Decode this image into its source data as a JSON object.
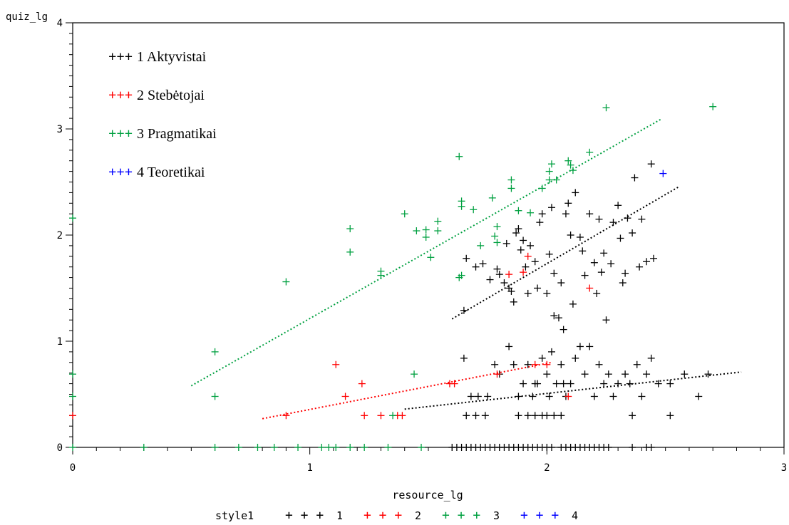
{
  "chart_data": {
    "type": "scatter",
    "xlabel": "resource_lg",
    "ylabel": "quiz_lg",
    "xlim": [
      0,
      3
    ],
    "ylim": [
      0,
      4
    ],
    "x_ticks": [
      "0",
      "1",
      "2",
      "3"
    ],
    "y_ticks": [
      "0",
      "1",
      "2",
      "3",
      "4"
    ],
    "legend_inner": {
      "placement": "top-left",
      "entries": [
        {
          "symbol": "+++",
          "label": "1 Aktyvistai",
          "color": "#000000"
        },
        {
          "symbol": "+++",
          "label": "2 Stebėtojai",
          "color": "#ff0000"
        },
        {
          "symbol": "+++",
          "label": "3 Pragmatikai",
          "color": "#00a040"
        },
        {
          "symbol": "+++",
          "label": "4 Teoretikai",
          "color": "#0000ff"
        }
      ]
    },
    "legend_bottom": {
      "title": "style1",
      "entries": [
        {
          "symbol": "+ + +",
          "label": "1",
          "color": "#000000"
        },
        {
          "symbol": "+ + +",
          "label": "2",
          "color": "#ff0000"
        },
        {
          "symbol": "+ + +",
          "label": "3",
          "color": "#00a040"
        },
        {
          "symbol": "+ + +",
          "label": "4",
          "color": "#0000ff"
        }
      ]
    },
    "series": [
      {
        "name": "1",
        "color": "#000000",
        "fit": {
          "x": [
            1.4,
            2.82
          ],
          "y": [
            0.36,
            0.71
          ]
        },
        "fit2": {
          "x": [
            1.6,
            2.56
          ],
          "y": [
            1.21,
            2.46
          ]
        },
        "points": [
          [
            1.65,
            1.29
          ],
          [
            1.66,
            1.78
          ],
          [
            1.7,
            1.7
          ],
          [
            1.73,
            1.73
          ],
          [
            1.76,
            1.58
          ],
          [
            1.79,
            1.68
          ],
          [
            1.8,
            1.63
          ],
          [
            1.82,
            1.55
          ],
          [
            1.83,
            1.92
          ],
          [
            1.84,
            1.5
          ],
          [
            1.85,
            1.47
          ],
          [
            1.86,
            1.37
          ],
          [
            1.87,
            2.02
          ],
          [
            1.88,
            2.06
          ],
          [
            1.89,
            1.86
          ],
          [
            1.9,
            1.95
          ],
          [
            1.91,
            1.7
          ],
          [
            1.92,
            1.45
          ],
          [
            1.93,
            1.9
          ],
          [
            1.95,
            1.75
          ],
          [
            1.96,
            1.5
          ],
          [
            1.97,
            2.12
          ],
          [
            1.98,
            2.2
          ],
          [
            2.0,
            1.45
          ],
          [
            2.01,
            1.82
          ],
          [
            2.02,
            2.26
          ],
          [
            2.03,
            1.64
          ],
          [
            2.05,
            1.22
          ],
          [
            2.06,
            1.55
          ],
          [
            2.08,
            2.2
          ],
          [
            2.09,
            2.3
          ],
          [
            2.1,
            2.0
          ],
          [
            2.11,
            1.35
          ],
          [
            2.12,
            2.4
          ],
          [
            2.14,
            1.98
          ],
          [
            2.15,
            1.85
          ],
          [
            2.16,
            1.62
          ],
          [
            2.18,
            2.2
          ],
          [
            2.2,
            1.74
          ],
          [
            2.21,
            1.45
          ],
          [
            2.22,
            2.15
          ],
          [
            2.23,
            1.65
          ],
          [
            2.24,
            1.83
          ],
          [
            2.25,
            1.2
          ],
          [
            2.27,
            1.73
          ],
          [
            2.28,
            2.12
          ],
          [
            2.3,
            2.28
          ],
          [
            2.31,
            1.97
          ],
          [
            2.32,
            1.55
          ],
          [
            2.33,
            1.64
          ],
          [
            2.34,
            2.16
          ],
          [
            2.36,
            2.02
          ],
          [
            2.37,
            2.54
          ],
          [
            2.39,
            1.7
          ],
          [
            2.4,
            2.15
          ],
          [
            2.42,
            1.75
          ],
          [
            2.44,
            2.67
          ],
          [
            2.45,
            1.78
          ],
          [
            2.07,
            1.11
          ],
          [
            2.03,
            1.24
          ],
          [
            1.65,
            0.84
          ],
          [
            1.68,
            0.48
          ],
          [
            1.71,
            0.48
          ],
          [
            1.75,
            0.48
          ],
          [
            1.78,
            0.78
          ],
          [
            1.8,
            0.69
          ],
          [
            1.84,
            0.95
          ],
          [
            1.86,
            0.78
          ],
          [
            1.88,
            0.48
          ],
          [
            1.9,
            0.6
          ],
          [
            1.92,
            0.78
          ],
          [
            1.94,
            0.48
          ],
          [
            1.96,
            0.6
          ],
          [
            1.98,
            0.84
          ],
          [
            2.0,
            0.69
          ],
          [
            2.02,
            0.9
          ],
          [
            2.04,
            0.6
          ],
          [
            2.06,
            0.78
          ],
          [
            2.08,
            0.48
          ],
          [
            2.1,
            0.6
          ],
          [
            2.12,
            0.84
          ],
          [
            2.14,
            0.95
          ],
          [
            2.16,
            0.69
          ],
          [
            2.18,
            0.95
          ],
          [
            2.2,
            0.48
          ],
          [
            2.22,
            0.78
          ],
          [
            2.24,
            0.6
          ],
          [
            2.26,
            0.69
          ],
          [
            2.28,
            0.48
          ],
          [
            2.3,
            0.6
          ],
          [
            2.33,
            0.69
          ],
          [
            2.35,
            0.6
          ],
          [
            2.38,
            0.78
          ],
          [
            2.4,
            0.48
          ],
          [
            2.42,
            0.69
          ],
          [
            2.44,
            0.84
          ],
          [
            2.47,
            0.6
          ],
          [
            2.52,
            0.6
          ],
          [
            2.58,
            0.69
          ],
          [
            2.64,
            0.48
          ],
          [
            2.68,
            0.69
          ],
          [
            2.07,
            0.6
          ],
          [
            1.95,
            0.6
          ],
          [
            2.01,
            0.48
          ],
          [
            1.66,
            0.3
          ],
          [
            1.7,
            0.3
          ],
          [
            1.74,
            0.3
          ],
          [
            1.88,
            0.3
          ],
          [
            1.92,
            0.3
          ],
          [
            1.95,
            0.3
          ],
          [
            1.98,
            0.3
          ],
          [
            2.0,
            0.3
          ],
          [
            2.03,
            0.3
          ],
          [
            2.06,
            0.3
          ],
          [
            2.36,
            0.3
          ],
          [
            2.52,
            0.3
          ],
          [
            1.6,
            0.0
          ],
          [
            1.62,
            0.0
          ],
          [
            1.64,
            0.0
          ],
          [
            1.66,
            0.0
          ],
          [
            1.68,
            0.0
          ],
          [
            1.7,
            0.0
          ],
          [
            1.72,
            0.0
          ],
          [
            1.74,
            0.0
          ],
          [
            1.76,
            0.0
          ],
          [
            1.78,
            0.0
          ],
          [
            1.8,
            0.0
          ],
          [
            1.82,
            0.0
          ],
          [
            1.84,
            0.0
          ],
          [
            1.86,
            0.0
          ],
          [
            1.88,
            0.0
          ],
          [
            1.9,
            0.0
          ],
          [
            1.92,
            0.0
          ],
          [
            1.94,
            0.0
          ],
          [
            1.96,
            0.0
          ],
          [
            1.98,
            0.0
          ],
          [
            2.0,
            0.0
          ],
          [
            2.02,
            0.0
          ],
          [
            2.06,
            0.0
          ],
          [
            2.08,
            0.0
          ],
          [
            2.1,
            0.0
          ],
          [
            2.12,
            0.0
          ],
          [
            2.14,
            0.0
          ],
          [
            2.16,
            0.0
          ],
          [
            2.18,
            0.0
          ],
          [
            2.2,
            0.0
          ],
          [
            2.22,
            0.0
          ],
          [
            2.24,
            0.0
          ],
          [
            2.26,
            0.0
          ],
          [
            2.36,
            0.0
          ],
          [
            2.42,
            0.0
          ],
          [
            2.44,
            0.0
          ]
        ]
      },
      {
        "name": "2",
        "color": "#ff0000",
        "fit": {
          "x": [
            0.8,
            2.02
          ],
          "y": [
            0.27,
            0.8
          ]
        },
        "points": [
          [
            0.0,
            0.3
          ],
          [
            0.9,
            0.3
          ],
          [
            1.11,
            0.78
          ],
          [
            1.15,
            0.48
          ],
          [
            1.22,
            0.6
          ],
          [
            1.23,
            0.3
          ],
          [
            1.3,
            0.3
          ],
          [
            1.37,
            0.3
          ],
          [
            1.39,
            0.3
          ],
          [
            1.59,
            0.6
          ],
          [
            1.61,
            0.6
          ],
          [
            1.79,
            0.69
          ],
          [
            1.9,
            1.65
          ],
          [
            1.92,
            1.8
          ],
          [
            1.95,
            0.78
          ],
          [
            2.0,
            0.78
          ],
          [
            2.09,
            0.48
          ],
          [
            2.18,
            1.5
          ],
          [
            1.84,
            1.63
          ]
        ]
      },
      {
        "name": "3",
        "color": "#00a040",
        "fit": {
          "x": [
            0.5,
            2.48
          ],
          "y": [
            0.58,
            3.09
          ]
        },
        "points": [
          [
            0.0,
            2.16
          ],
          [
            0.0,
            0.69
          ],
          [
            0.0,
            0.48
          ],
          [
            0.0,
            0.0
          ],
          [
            0.3,
            0.0
          ],
          [
            0.6,
            0.9
          ],
          [
            0.6,
            0.48
          ],
          [
            0.6,
            0.0
          ],
          [
            0.7,
            0.0
          ],
          [
            0.78,
            0.0
          ],
          [
            0.85,
            0.0
          ],
          [
            0.9,
            1.56
          ],
          [
            0.95,
            0.0
          ],
          [
            1.05,
            0.0
          ],
          [
            1.08,
            0.0
          ],
          [
            1.11,
            0.0
          ],
          [
            1.17,
            2.06
          ],
          [
            1.17,
            1.84
          ],
          [
            1.17,
            0.0
          ],
          [
            1.23,
            0.0
          ],
          [
            1.3,
            1.66
          ],
          [
            1.3,
            1.62
          ],
          [
            1.33,
            0.0
          ],
          [
            1.35,
            0.3
          ],
          [
            1.4,
            2.2
          ],
          [
            1.44,
            0.69
          ],
          [
            1.45,
            2.04
          ],
          [
            1.47,
            0.0
          ],
          [
            1.49,
            2.05
          ],
          [
            1.49,
            1.98
          ],
          [
            1.51,
            1.79
          ],
          [
            1.54,
            2.13
          ],
          [
            1.54,
            2.04
          ],
          [
            1.63,
            2.74
          ],
          [
            1.63,
            1.6
          ],
          [
            1.64,
            2.32
          ],
          [
            1.64,
            2.27
          ],
          [
            1.64,
            1.62
          ],
          [
            1.69,
            2.24
          ],
          [
            1.72,
            1.9
          ],
          [
            1.77,
            2.35
          ],
          [
            1.78,
            1.99
          ],
          [
            1.79,
            1.93
          ],
          [
            1.79,
            2.08
          ],
          [
            1.85,
            2.52
          ],
          [
            1.85,
            2.44
          ],
          [
            1.88,
            2.23
          ],
          [
            1.93,
            2.21
          ],
          [
            1.98,
            2.44
          ],
          [
            2.01,
            2.6
          ],
          [
            2.01,
            2.52
          ],
          [
            2.02,
            2.67
          ],
          [
            2.04,
            2.52
          ],
          [
            2.09,
            2.7
          ],
          [
            2.1,
            2.66
          ],
          [
            2.11,
            2.61
          ],
          [
            2.18,
            2.78
          ],
          [
            2.25,
            3.2
          ],
          [
            2.7,
            3.21
          ]
        ]
      },
      {
        "name": "4",
        "color": "#0000ff",
        "points": [
          [
            2.49,
            2.58
          ]
        ]
      }
    ]
  }
}
